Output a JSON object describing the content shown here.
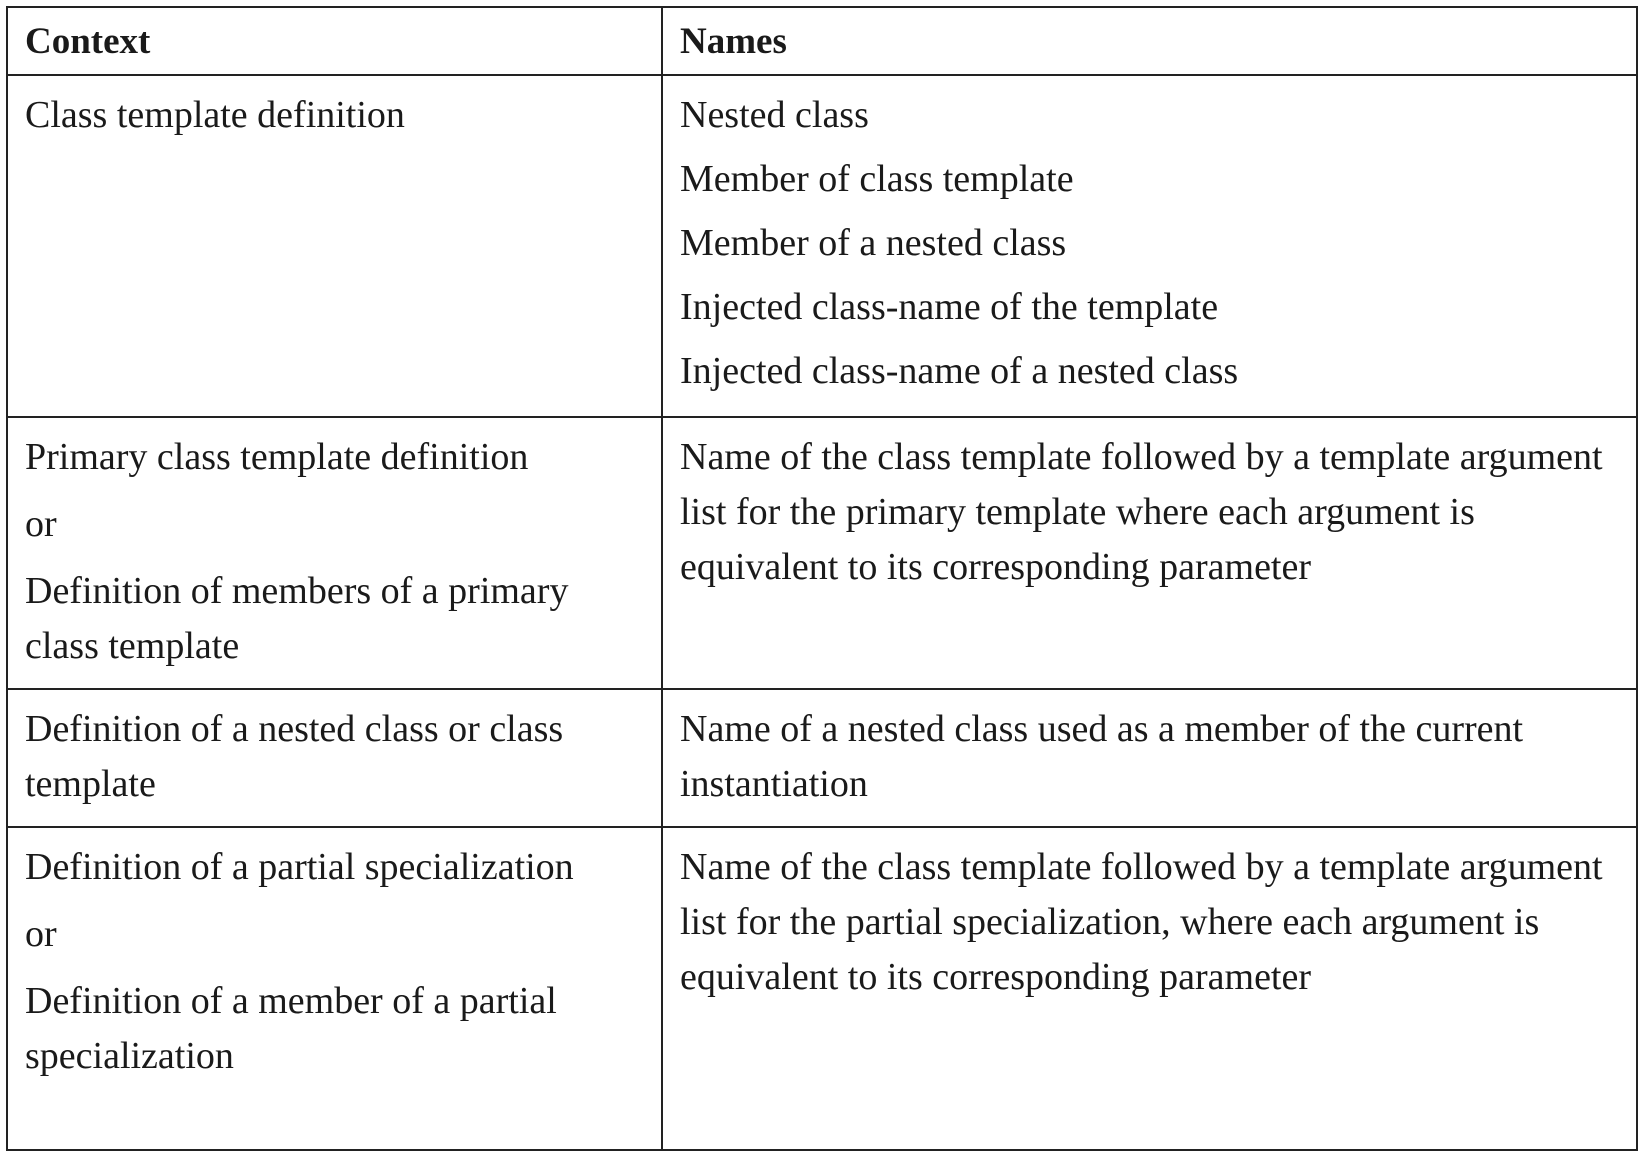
{
  "table": {
    "headers": {
      "context": "Context",
      "names": "Names"
    },
    "rows": [
      {
        "context": [
          "Class template definition"
        ],
        "names": [
          "Nested class",
          "Member of class template",
          "Member of a nested class",
          "Injected class-name of the template",
          "Injected class-name of a nested class"
        ]
      },
      {
        "context": [
          "Primary class template definition",
          "or",
          "Definition of members of a primary class template"
        ],
        "names": [
          "Name of the class template followed by a template argument list for the primary template where each argument is equivalent to its corresponding parameter"
        ]
      },
      {
        "context": [
          "Definition of a nested class or class template"
        ],
        "names": [
          "Name of a nested class used as a member of the current instantiation"
        ]
      },
      {
        "context": [
          "Definition of a partial specialization",
          "or",
          "Definition of a member of a partial specialization"
        ],
        "names": [
          "Name of the class template followed by a template argument list for the partial specialization, where each argument is equivalent to its corresponding parameter"
        ]
      }
    ]
  }
}
